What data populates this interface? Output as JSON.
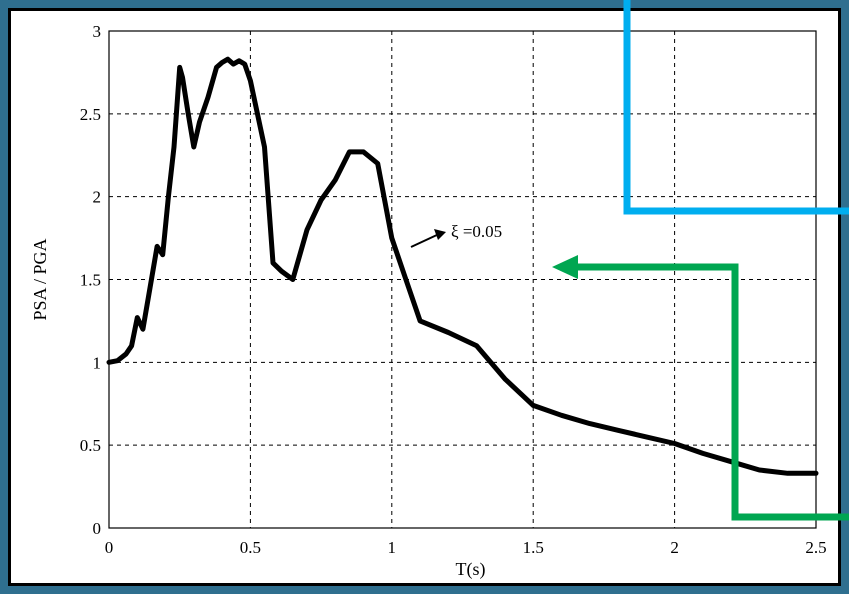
{
  "chart_data": {
    "type": "line",
    "xlabel": "T(s)",
    "ylabel": "PSA / PGA",
    "xlim": [
      0,
      2.5
    ],
    "ylim": [
      0,
      3
    ],
    "xticks": [
      "0",
      "0.5",
      "1",
      "1.5",
      "2",
      "2.5"
    ],
    "yticks": [
      "0",
      "0.5",
      "1",
      "1.5",
      "2",
      "2.5",
      "3"
    ],
    "grid": true,
    "annotation": "ξ =0.05",
    "series": [
      {
        "color": "#000000",
        "x": [
          0,
          0.03,
          0.06,
          0.08,
          0.1,
          0.12,
          0.14,
          0.17,
          0.19,
          0.21,
          0.23,
          0.25,
          0.26,
          0.28,
          0.3,
          0.32,
          0.35,
          0.38,
          0.4,
          0.42,
          0.44,
          0.46,
          0.48,
          0.5,
          0.55,
          0.58,
          0.61,
          0.65,
          0.7,
          0.75,
          0.8,
          0.85,
          0.9,
          0.95,
          1.0,
          1.05,
          1.1,
          1.2,
          1.3,
          1.4,
          1.5,
          1.6,
          1.7,
          1.8,
          1.9,
          2.0,
          2.1,
          2.2,
          2.3,
          2.4,
          2.5
        ],
        "y": [
          1.0,
          1.01,
          1.05,
          1.1,
          1.27,
          1.2,
          1.4,
          1.7,
          1.65,
          2.0,
          2.3,
          2.78,
          2.72,
          2.5,
          2.3,
          2.45,
          2.6,
          2.78,
          2.81,
          2.83,
          2.8,
          2.82,
          2.8,
          2.7,
          2.3,
          1.6,
          1.55,
          1.5,
          1.8,
          1.98,
          2.1,
          2.27,
          2.27,
          2.2,
          1.75,
          1.5,
          1.25,
          1.18,
          1.1,
          0.9,
          0.74,
          0.68,
          0.63,
          0.59,
          0.55,
          0.51,
          0.45,
          0.4,
          0.35,
          0.33,
          0.33
        ]
      }
    ]
  },
  "overlay": {
    "blue": "#00aeef",
    "green": "#00a651"
  }
}
